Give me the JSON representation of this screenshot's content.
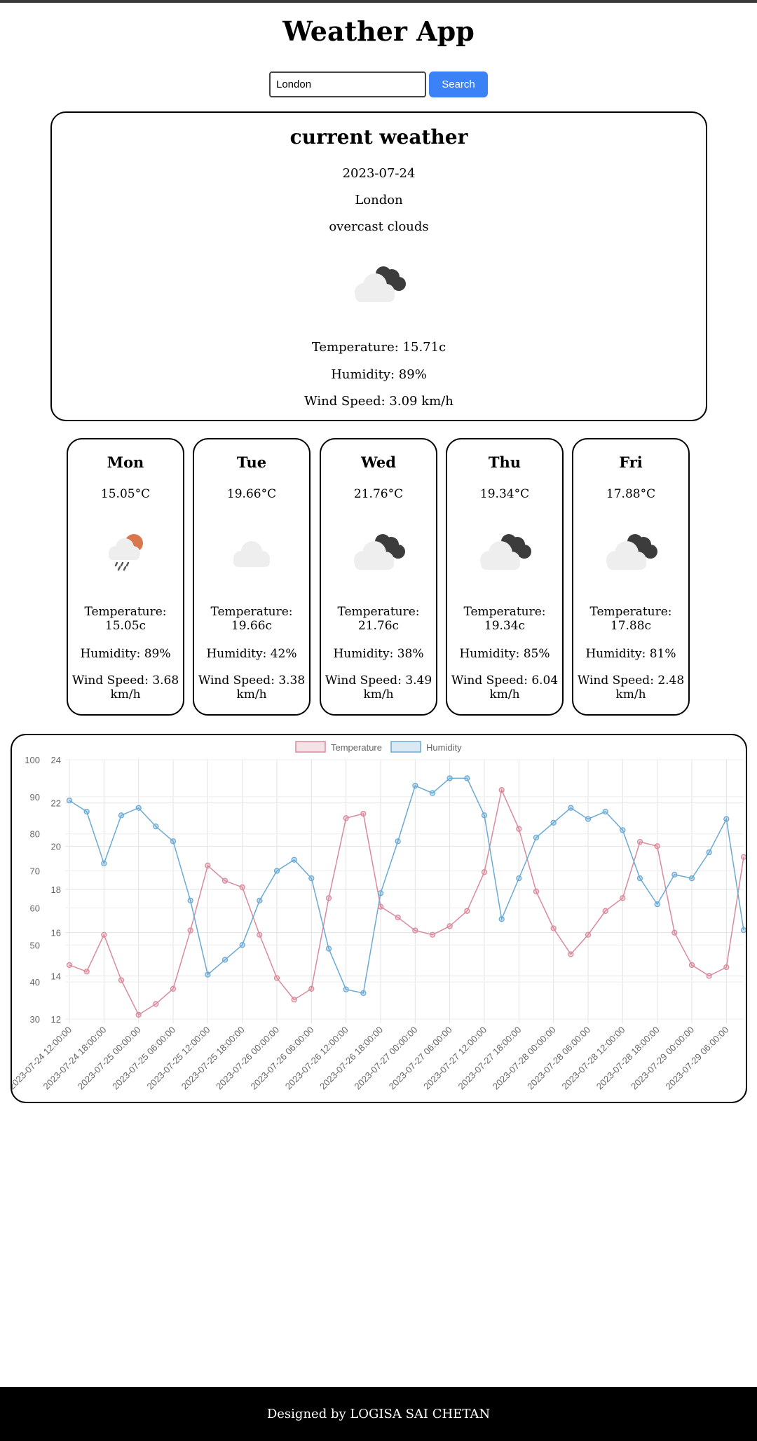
{
  "app": {
    "title": "Weather App"
  },
  "search": {
    "value": "London",
    "button_label": "Search"
  },
  "current": {
    "heading": "current weather",
    "date": "2023-07-24",
    "city": "London",
    "description": "overcast clouds",
    "icon": "cloud-dark-icon",
    "temperature": "Temperature: 15.71c",
    "humidity": "Humidity: 89%",
    "wind": "Wind Speed: 3.09 km/h"
  },
  "forecast": [
    {
      "day": "Mon",
      "temp": "15.05°C",
      "icon": "rain-sun-icon",
      "temperature": "Temperature: 15.05c",
      "humidity": "Humidity: 89%",
      "wind": "Wind Speed: 3.68 km/h"
    },
    {
      "day": "Tue",
      "temp": "19.66°C",
      "icon": "cloud-icon",
      "temperature": "Temperature: 19.66c",
      "humidity": "Humidity: 42%",
      "wind": "Wind Speed: 3.38 km/h"
    },
    {
      "day": "Wed",
      "temp": "21.76°C",
      "icon": "cloud-dark-icon",
      "temperature": "Temperature: 21.76c",
      "humidity": "Humidity: 38%",
      "wind": "Wind Speed: 3.49 km/h"
    },
    {
      "day": "Thu",
      "temp": "19.34°C",
      "icon": "cloud-dark-icon",
      "temperature": "Temperature: 19.34c",
      "humidity": "Humidity: 85%",
      "wind": "Wind Speed: 6.04 km/h"
    },
    {
      "day": "Fri",
      "temp": "17.88°C",
      "icon": "cloud-dark-icon",
      "temperature": "Temperature: 17.88c",
      "humidity": "Humidity: 81%",
      "wind": "Wind Speed: 2.48 km/h"
    }
  ],
  "chart_data": {
    "type": "line",
    "legend_position": "top",
    "grid": true,
    "x": [
      "2023-07-24 12:00:00",
      "2023-07-24 15:00:00",
      "2023-07-24 18:00:00",
      "2023-07-24 21:00:00",
      "2023-07-25 00:00:00",
      "2023-07-25 03:00:00",
      "2023-07-25 06:00:00",
      "2023-07-25 09:00:00",
      "2023-07-25 12:00:00",
      "2023-07-25 15:00:00",
      "2023-07-25 18:00:00",
      "2023-07-25 21:00:00",
      "2023-07-26 00:00:00",
      "2023-07-26 03:00:00",
      "2023-07-26 06:00:00",
      "2023-07-26 09:00:00",
      "2023-07-26 12:00:00",
      "2023-07-26 15:00:00",
      "2023-07-26 18:00:00",
      "2023-07-26 21:00:00",
      "2023-07-27 00:00:00",
      "2023-07-27 03:00:00",
      "2023-07-27 06:00:00",
      "2023-07-27 09:00:00",
      "2023-07-27 12:00:00",
      "2023-07-27 15:00:00",
      "2023-07-27 18:00:00",
      "2023-07-27 21:00:00",
      "2023-07-28 00:00:00",
      "2023-07-28 03:00:00",
      "2023-07-28 06:00:00",
      "2023-07-28 09:00:00",
      "2023-07-28 12:00:00",
      "2023-07-28 15:00:00",
      "2023-07-28 18:00:00",
      "2023-07-28 21:00:00",
      "2023-07-29 00:00:00",
      "2023-07-29 03:00:00",
      "2023-07-29 06:00:00",
      "2023-07-29 09:00:00"
    ],
    "x_tick_labels": [
      "2023-07-24 12:00:00",
      "2023-07-24 18:00:00",
      "2023-07-25 00:00:00",
      "2023-07-25 06:00:00",
      "2023-07-25 12:00:00",
      "2023-07-25 18:00:00",
      "2023-07-26 00:00:00",
      "2023-07-26 06:00:00",
      "2023-07-26 12:00:00",
      "2023-07-26 18:00:00",
      "2023-07-27 00:00:00",
      "2023-07-27 06:00:00",
      "2023-07-27 12:00:00",
      "2023-07-27 18:00:00",
      "2023-07-28 00:00:00",
      "2023-07-28 06:00:00",
      "2023-07-28 12:00:00",
      "2023-07-28 18:00:00",
      "2023-07-29 00:00:00",
      "2023-07-29 06:00:00"
    ],
    "series": [
      {
        "name": "Temperature",
        "axis": "right-inner",
        "color": "#d98a9c",
        "values": [
          14.5,
          14.2,
          15.9,
          13.8,
          12.2,
          12.7,
          13.4,
          16.1,
          19.1,
          18.4,
          18.1,
          15.9,
          13.9,
          12.9,
          13.4,
          17.6,
          21.3,
          21.5,
          17.2,
          16.7,
          16.1,
          15.9,
          16.3,
          17.0,
          18.8,
          22.6,
          20.8,
          17.9,
          16.2,
          15.0,
          15.9,
          17.0,
          17.6,
          20.2,
          20.0,
          16.0,
          14.5,
          14.0,
          14.4,
          19.5
        ],
        "ylim": [
          12,
          24
        ],
        "ticks": [
          12,
          14,
          16,
          18,
          20,
          22,
          24
        ]
      },
      {
        "name": "Humidity",
        "axis": "left-outer",
        "color": "#6aaad4",
        "values": [
          89,
          86,
          72,
          85,
          87,
          82,
          78,
          62,
          42,
          46,
          50,
          62,
          70,
          73,
          68,
          49,
          38,
          37,
          64,
          78,
          93,
          91,
          95,
          95,
          85,
          57,
          68,
          79,
          83,
          87,
          84,
          86,
          81,
          68,
          61,
          69,
          68,
          75,
          84,
          54
        ],
        "ylim": [
          30,
          100
        ],
        "ticks": [
          30,
          40,
          50,
          60,
          70,
          80,
          90,
          100
        ]
      }
    ]
  },
  "footer": {
    "text": "Designed by LOGISA SAI CHETAN"
  },
  "colors": {
    "accent": "#3b82f6",
    "footer_bg": "#000000"
  }
}
